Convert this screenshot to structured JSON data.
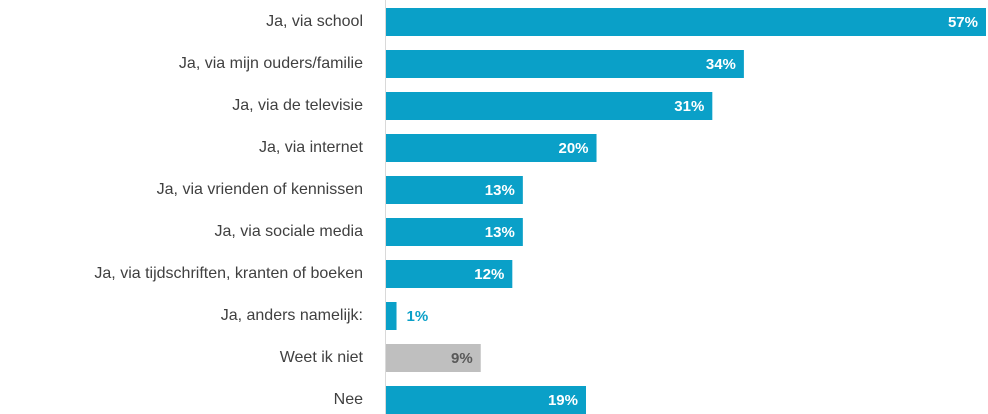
{
  "chart_data": {
    "type": "barh",
    "categories": [
      "Ja, via school",
      "Ja, via mijn ouders/familie",
      "Ja, via de televisie",
      "Ja, via internet",
      "Ja, via vrienden of kennissen",
      "Ja, via sociale media",
      "Ja, via tijdschriften, kranten of boeken",
      "Ja, anders namelijk:",
      "Weet ik niet",
      "Nee"
    ],
    "values": [
      57,
      34,
      31,
      20,
      13,
      13,
      12,
      1,
      9,
      19
    ],
    "value_labels": [
      "57%",
      "34%",
      "31%",
      "20%",
      "13%",
      "13%",
      "12%",
      "1%",
      "9%",
      "19%"
    ],
    "colors": [
      "#0aa0c8",
      "#0aa0c8",
      "#0aa0c8",
      "#0aa0c8",
      "#0aa0c8",
      "#0aa0c8",
      "#0aa0c8",
      "#0aa0c8",
      "#bfbfbf",
      "#0aa0c8"
    ],
    "value_label_colors": [
      "#ffffff",
      "#ffffff",
      "#ffffff",
      "#ffffff",
      "#ffffff",
      "#ffffff",
      "#ffffff",
      "#0aa0c8",
      "#595959",
      "#ffffff"
    ]
  }
}
